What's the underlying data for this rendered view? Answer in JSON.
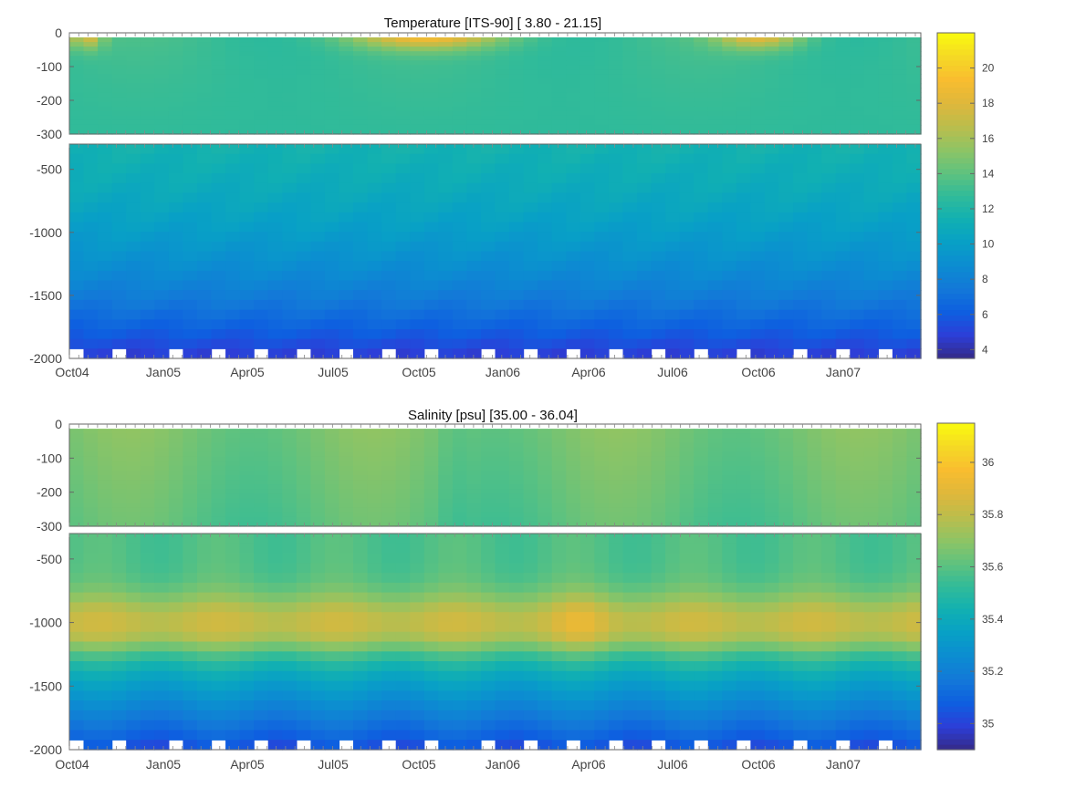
{
  "chart_data": [
    {
      "type": "heatmap",
      "title": "Temperature [ITS-90]   [ 3.80 - 21.15]",
      "x_ticks": [
        "Oct04",
        "Jan05",
        "Apr05",
        "Jul05",
        "Oct05",
        "Jan06",
        "Apr06",
        "Jul06",
        "Oct06",
        "Jan07"
      ],
      "upper_panel": {
        "ylim": [
          -300,
          0
        ],
        "y_ticks": [
          "0",
          "-100",
          "-200",
          "-300"
        ]
      },
      "lower_panel": {
        "ylim": [
          -2000,
          -300
        ],
        "y_ticks": [
          "-500",
          "-1000",
          "-1500",
          "-2000"
        ]
      },
      "colorbar": {
        "range": [
          3.5,
          22
        ],
        "ticks": [
          "4",
          "6",
          "8",
          "10",
          "12",
          "14",
          "16",
          "18",
          "20"
        ],
        "tick_values": [
          4,
          6,
          8,
          10,
          12,
          14,
          16,
          18,
          20
        ]
      },
      "value_range": [
        3.8,
        21.15
      ],
      "colormap": "parula",
      "grid": false
    },
    {
      "type": "heatmap",
      "title": "Salinity [psu]   [35.00 - 36.04]",
      "x_ticks": [
        "Oct04",
        "Jan05",
        "Apr05",
        "Jul05",
        "Oct05",
        "Jan06",
        "Apr06",
        "Jul06",
        "Oct06",
        "Jan07"
      ],
      "upper_panel": {
        "ylim": [
          -300,
          0
        ],
        "y_ticks": [
          "0",
          "-100",
          "-200",
          "-300"
        ]
      },
      "lower_panel": {
        "ylim": [
          -2000,
          -300
        ],
        "y_ticks": [
          "-500",
          "-1000",
          "-1500",
          "-2000"
        ]
      },
      "colorbar": {
        "range": [
          34.9,
          36.15
        ],
        "ticks": [
          "35",
          "35.2",
          "35.4",
          "35.6",
          "35.8",
          "36"
        ],
        "tick_values": [
          35,
          35.2,
          35.4,
          35.6,
          35.8,
          36
        ]
      },
      "value_range": [
        35.0,
        36.04
      ],
      "colormap": "parula",
      "grid": false
    }
  ]
}
